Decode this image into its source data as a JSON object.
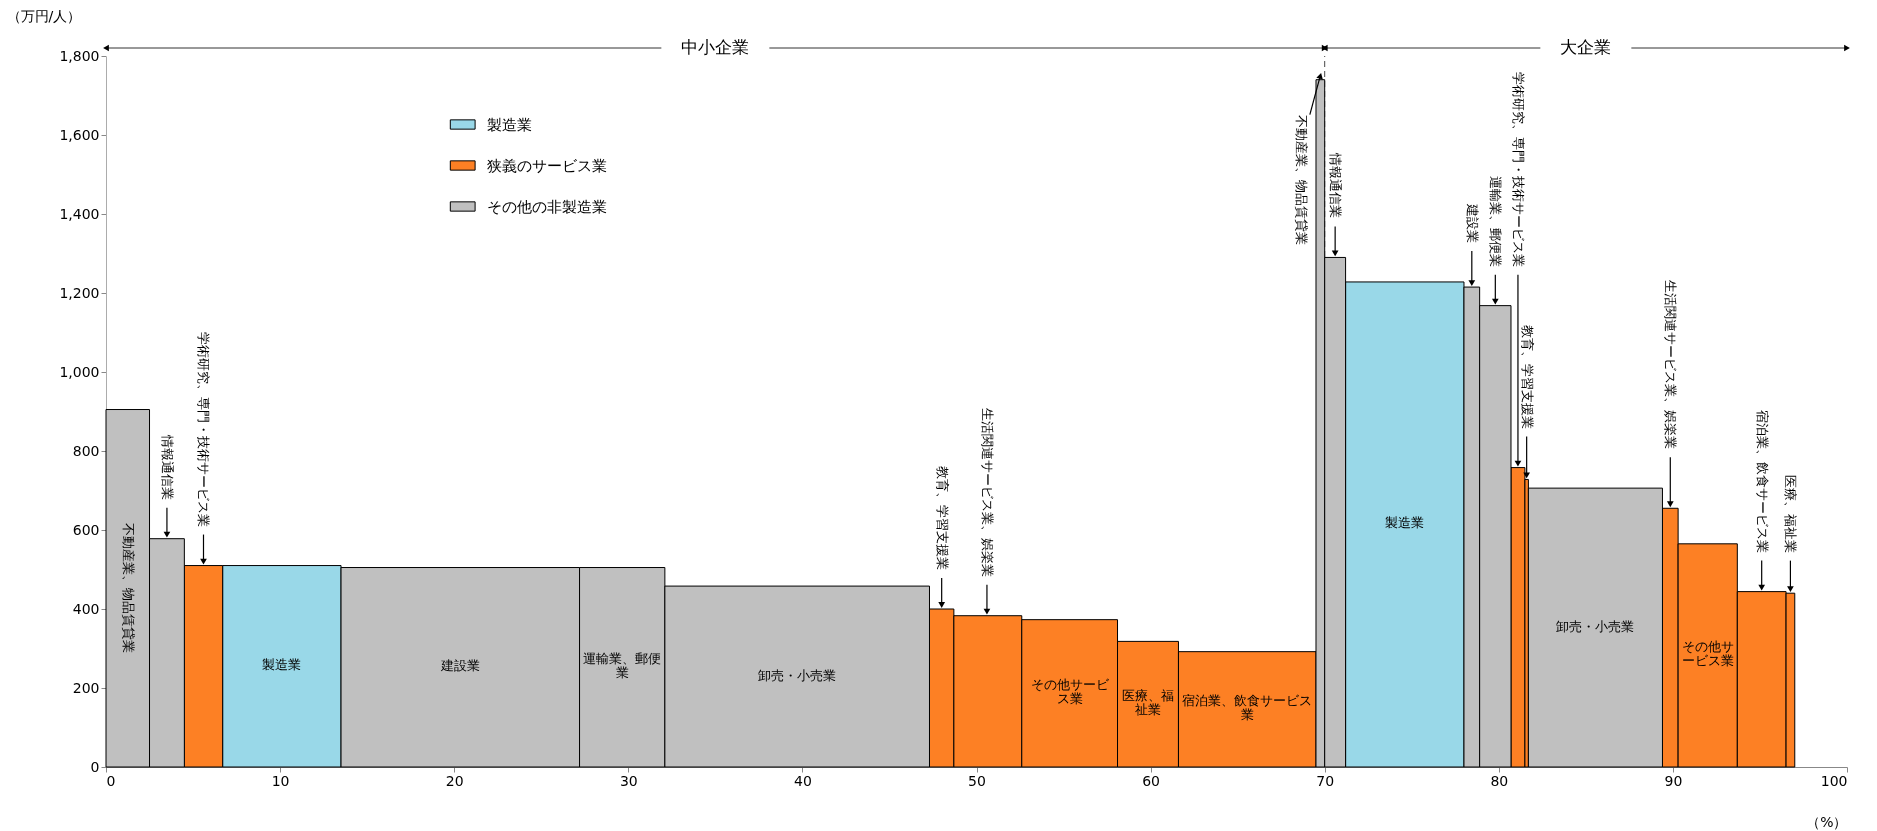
{
  "chart_data": {
    "type": "histogram",
    "xlabel": "（%）",
    "ylabel": "（万円/人）",
    "bins": [
      0,
      2.5,
      4.5,
      6.7,
      13.5,
      27.2,
      32.1,
      47.3,
      48.7,
      52.6,
      58.1,
      61.6,
      69.5,
      70.0,
      71.2,
      78.0,
      78.9,
      80.7,
      81.5,
      81.7,
      89.4,
      90.3,
      93.7,
      96.5,
      97.0
    ],
    "series": [
      {
        "name": "製造業",
        "color": "#99d8e8",
        "values": [
          null,
          null,
          null,
          510,
          null,
          null,
          null,
          null,
          null,
          null,
          null,
          null,
          null,
          null,
          1228,
          null,
          null,
          null,
          null,
          null,
          null,
          null,
          null,
          null
        ]
      },
      {
        "name": "狭義のサービス業",
        "color": "#fd8024",
        "values": [
          null,
          null,
          510,
          null,
          null,
          null,
          null,
          400,
          383,
          373,
          318,
          292,
          null,
          null,
          null,
          null,
          null,
          758,
          728,
          null,
          655,
          565,
          444,
          440
        ]
      },
      {
        "name": "その他の非製造業",
        "color": "#c0c0c0",
        "values": [
          905,
          578,
          null,
          null,
          505,
          505,
          458,
          null,
          null,
          null,
          null,
          null,
          1740,
          1290,
          null,
          1215,
          1168,
          null,
          null,
          706,
          null,
          null,
          null,
          null
        ]
      }
    ],
    "xlim": [
      0,
      100
    ],
    "xticks": [
      0,
      10,
      20,
      30,
      40,
      50,
      60,
      70,
      80,
      90,
      100
    ],
    "ylim": [
      0,
      1800
    ],
    "yticks": [
      0,
      200,
      400,
      600,
      800,
      {
        "value": 1000,
        "label": "1,000"
      },
      {
        "value": 1200,
        "label": "1,200"
      },
      {
        "value": 1400,
        "label": "1,400"
      },
      {
        "value": 1600,
        "label": "1,600"
      },
      {
        "value": 1800,
        "label": "1,800"
      }
    ],
    "grid": false,
    "legend": "top left",
    "ref_lines": [
      {
        "axis": "x",
        "value": 70,
        "line_style": "dashed"
      }
    ],
    "bands": [
      {
        "axis": "x",
        "from": 0,
        "to": 70,
        "label": "中小企業",
        "color": "#ffffff"
      },
      {
        "axis": "x",
        "from": 70,
        "to": 100,
        "label": "大企業",
        "color": "#ffffff"
      }
    ],
    "annotations": [
      "不動産業、物品賃貸業",
      "製造業",
      "建設業",
      "運輸業、郵便業",
      "卸売・小売業",
      "その他サービス業",
      "医療、福祉業",
      "宿泊業、飲食サービス業",
      "製造業",
      "卸売・小売業",
      "その他サービス業",
      {
        "text": "情報通信業",
        "x": 3.5,
        "y": 578
      },
      {
        "text": "学術研究、専門・技術サービス業",
        "x": 5.6,
        "y": 510
      },
      {
        "text": "教育、学習支援業",
        "x": 48.0,
        "y": 400
      },
      {
        "text": "生活関連サービス業、娯楽業",
        "x": 50.6,
        "y": 383
      },
      {
        "text": "不動産業、物品賃貸業",
        "x": 69.75,
        "y": 1740
      },
      {
        "text": "情報通信業",
        "x": 70.6,
        "y": 1290
      },
      {
        "text": "建設業",
        "x": 78.45,
        "y": 1215
      },
      {
        "text": "運輸業、郵便業",
        "x": 79.8,
        "y": 1168
      },
      {
        "text": "学術研究、専門・技術サービス業",
        "x": 81.1,
        "y": 758
      },
      {
        "text": "教育、学習支援業",
        "x": 81.6,
        "y": 728
      },
      {
        "text": "生活関連サービス業、娯楽業",
        "x": 89.85,
        "y": 655
      },
      {
        "text": "宿泊業、飲食サービス業",
        "x": 95.1,
        "y": 444
      },
      {
        "text": "医療、福祉業",
        "x": 96.75,
        "y": 440
      }
    ]
  }
}
